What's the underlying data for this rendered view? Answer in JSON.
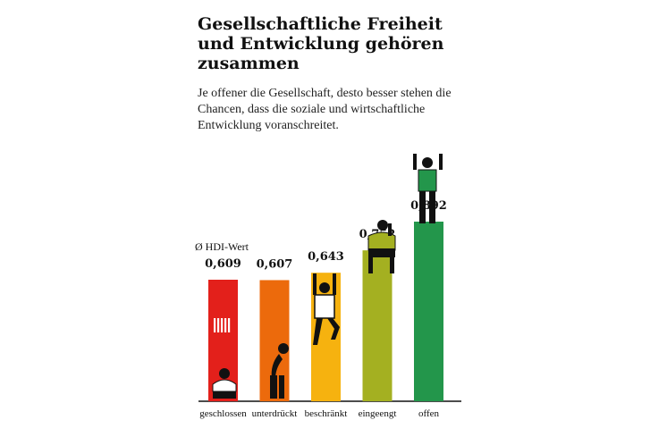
{
  "title": "Gesellschaftliche Freiheit und Entwicklung gehören zusammen",
  "subtitle": "Je offener die Gesellschaft, desto besser stehen die Chancen, dass die soziale und wirtschaftliche Entwicklung voranschreitet.",
  "legend_label": "Ø HDI-Wert",
  "chart_data": {
    "type": "bar",
    "categories": [
      "geschlossen",
      "unterdrückt",
      "beschränkt",
      "eingeengt",
      "offen"
    ],
    "values": [
      0.609,
      0.607,
      0.643,
      0.752,
      0.892
    ],
    "value_labels": [
      "0,609",
      "0,607",
      "0,643",
      "0,752",
      "0,892"
    ],
    "colors": [
      "#e3201b",
      "#ec6a0c",
      "#f6b20f",
      "#a4b021",
      "#23964b"
    ],
    "legend": "HDI-Wert",
    "xlabel": "",
    "ylabel": ""
  }
}
